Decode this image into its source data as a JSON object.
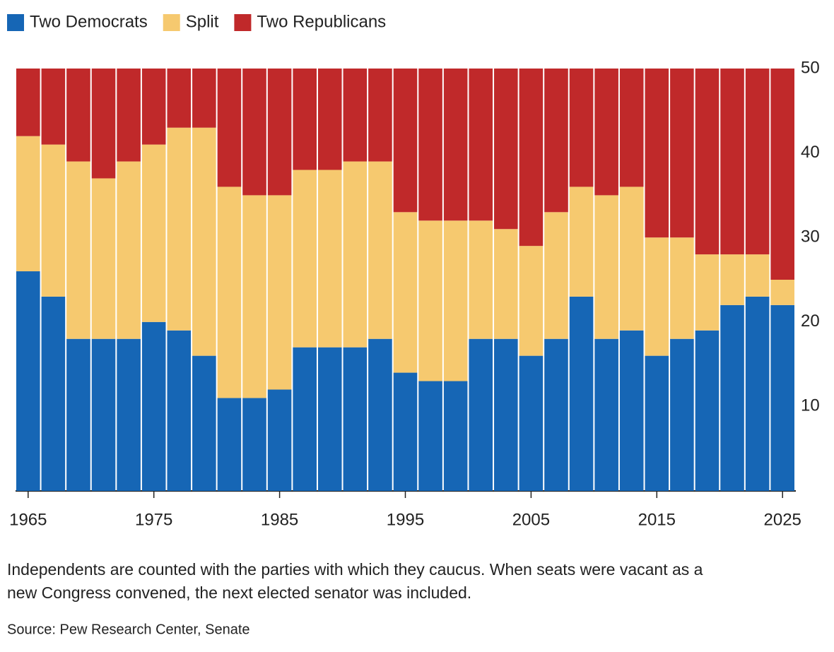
{
  "chart_data": {
    "type": "stacked_bar",
    "x": [
      1965,
      1967,
      1969,
      1971,
      1973,
      1975,
      1977,
      1979,
      1981,
      1983,
      1985,
      1987,
      1989,
      1991,
      1993,
      1995,
      1997,
      1999,
      2001,
      2003,
      2005,
      2007,
      2009,
      2011,
      2013,
      2015,
      2017,
      2019,
      2021,
      2023,
      2025
    ],
    "series": [
      {
        "name": "Two Democrats",
        "color": "#1666b5",
        "values": [
          26,
          23,
          18,
          18,
          18,
          20,
          19,
          16,
          11,
          11,
          12,
          17,
          17,
          17,
          18,
          14,
          13,
          13,
          18,
          18,
          16,
          18,
          23,
          18,
          19,
          16,
          18,
          19,
          22,
          23,
          22
        ]
      },
      {
        "name": "Split",
        "color": "#f6c96f",
        "values": [
          16,
          18,
          21,
          19,
          21,
          21,
          24,
          27,
          25,
          24,
          23,
          21,
          21,
          22,
          21,
          19,
          19,
          19,
          14,
          13,
          13,
          15,
          13,
          17,
          17,
          14,
          12,
          9,
          6,
          5,
          3
        ]
      },
      {
        "name": "Two Republicans",
        "color": "#c0292a",
        "values": [
          8,
          9,
          11,
          13,
          11,
          9,
          7,
          7,
          14,
          15,
          15,
          12,
          12,
          11,
          11,
          17,
          18,
          18,
          18,
          19,
          21,
          17,
          14,
          15,
          14,
          20,
          20,
          22,
          22,
          22,
          25
        ]
      }
    ],
    "xlim": [
      1964,
      2026
    ],
    "xticks": [
      1965,
      1975,
      1985,
      1995,
      2005,
      2015,
      2025
    ],
    "ylim": [
      0,
      50
    ],
    "yticks": [
      10,
      20,
      30,
      40,
      50
    ],
    "grid": false,
    "note": [
      "Independents are counted with the parties with which they caucus. When seats were vacant as a",
      "new Congress convened, the next elected senator was included."
    ],
    "source": "Source: Pew Research Center, Senate"
  }
}
